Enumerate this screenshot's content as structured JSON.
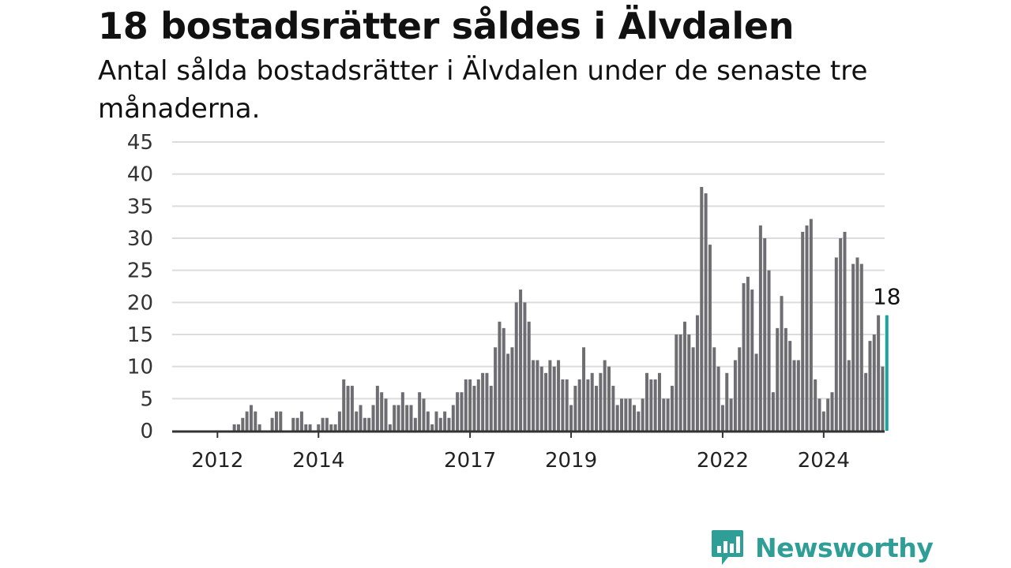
{
  "header": {
    "title": "18 bostadsrätter såldes i Älvdalen",
    "subtitle": "Antal sålda bostadsrätter i Älvdalen under de senaste tre månaderna."
  },
  "brand": {
    "name": "Newsworthy",
    "icon": "bar-chart-speech-bubble-icon",
    "color": "#2e9e97"
  },
  "colors": {
    "bar": "#6e6e72",
    "highlight": "#1aa39a",
    "grid": "#dcdcdc",
    "axis": "#333333"
  },
  "chart_data": {
    "type": "bar",
    "title": "18 bostadsrätter såldes i Älvdalen",
    "subtitle": "Antal sålda bostadsrätter i Älvdalen under de senaste tre månaderna.",
    "xlabel": "",
    "ylabel": "",
    "ylim": [
      0,
      45
    ],
    "yticks": [
      0,
      5,
      10,
      15,
      20,
      25,
      30,
      35,
      40,
      45
    ],
    "xticks": [
      {
        "label": "2012",
        "index": 4
      },
      {
        "label": "2014",
        "index": 28
      },
      {
        "label": "2017",
        "index": 64
      },
      {
        "label": "2019",
        "index": 88
      },
      {
        "label": "2022",
        "index": 124
      },
      {
        "label": "2024",
        "index": 148
      }
    ],
    "grid": true,
    "legend": "none",
    "highlight_last": true,
    "annotation": {
      "text": "18",
      "target": "last"
    },
    "values": [
      0,
      0,
      0,
      0,
      0,
      0,
      0,
      0,
      1,
      1,
      2,
      3,
      4,
      3,
      1,
      0,
      0,
      2,
      3,
      3,
      0,
      0,
      2,
      2,
      3,
      1,
      1,
      0,
      1,
      2,
      2,
      1,
      1,
      3,
      8,
      7,
      7,
      3,
      4,
      2,
      2,
      4,
      7,
      6,
      5,
      1,
      4,
      4,
      6,
      4,
      4,
      2,
      6,
      5,
      3,
      1,
      3,
      2,
      3,
      2,
      4,
      6,
      6,
      8,
      8,
      7,
      8,
      9,
      9,
      7,
      13,
      17,
      16,
      12,
      13,
      20,
      22,
      20,
      17,
      11,
      11,
      10,
      9,
      11,
      10,
      11,
      8,
      8,
      4,
      7,
      8,
      13,
      8,
      9,
      7,
      9,
      11,
      10,
      7,
      4,
      5,
      5,
      5,
      4,
      3,
      5,
      9,
      8,
      8,
      9,
      5,
      5,
      7,
      15,
      15,
      17,
      15,
      13,
      18,
      38,
      37,
      29,
      13,
      10,
      4,
      9,
      5,
      11,
      13,
      23,
      24,
      22,
      12,
      32,
      30,
      25,
      6,
      16,
      21,
      16,
      14,
      11,
      11,
      31,
      32,
      33,
      8,
      5,
      3,
      5,
      6,
      27,
      30,
      31,
      11,
      26,
      27,
      26,
      9,
      14,
      15,
      18,
      10,
      18
    ]
  }
}
